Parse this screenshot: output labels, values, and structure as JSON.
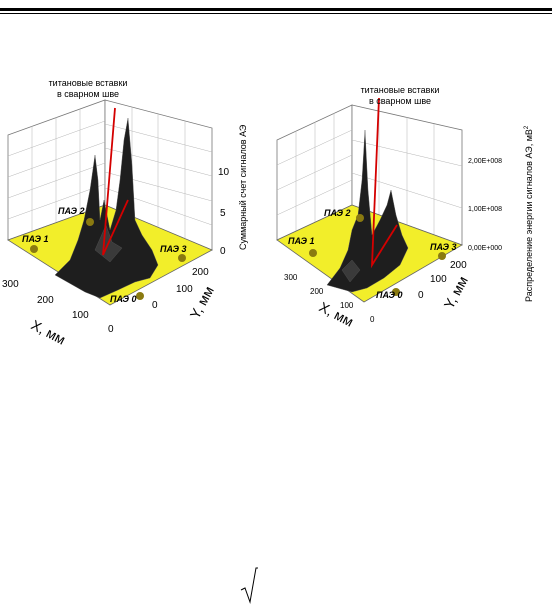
{
  "figure_left": {
    "annotation": [
      "титановые вставки",
      "в сварном шве"
    ],
    "x_label": "X, мм",
    "y_label": "Y, мм",
    "z_label": "Суммарный счет сигналов АЭ",
    "x_ticks": [
      "300",
      "200",
      "100",
      "0"
    ],
    "y_ticks": [
      "200",
      "100",
      "0"
    ],
    "z_ticks": [
      "10",
      "5",
      "0"
    ],
    "sensors": [
      "ПАЭ 1",
      "ПАЭ 2",
      "ПАЭ 3",
      "ПАЭ 0"
    ]
  },
  "figure_right": {
    "annotation": [
      "титановые вставки",
      "в сварном шве"
    ],
    "x_label": "X, мм",
    "y_label": "Y, мм",
    "z_label": "Распределение энергии сигналов АЭ, мВ",
    "z_label_sup": "2",
    "x_ticks": [
      "300",
      "200",
      "100",
      "0"
    ],
    "y_ticks": [
      "200",
      "100",
      "0"
    ],
    "z_ticks": [
      "2,00E+008",
      "1,00E+008",
      "0,00E+000"
    ],
    "sensors": [
      "ПАЭ 1",
      "ПАЭ 2",
      "ПАЭ 3",
      "ПАЭ 0"
    ]
  },
  "colors": {
    "plane": "#f2ee2a",
    "sensor": "#8a7a10",
    "pointer": "#d40000",
    "surface": "#1e1e1e"
  }
}
